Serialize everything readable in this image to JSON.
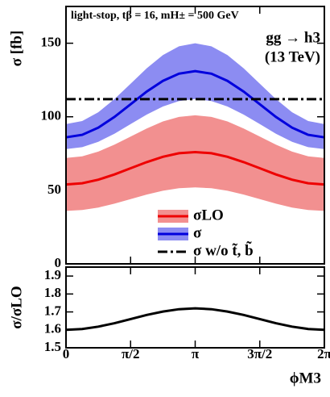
{
  "chart_data": [
    {
      "type": "band-line",
      "ylabel": "σ [fb]",
      "annotations": [
        "light-stop, tβ = 16, mH± = 500 GeV",
        "gg → h3",
        "(13 TeV)"
      ],
      "ylim": [
        0,
        175
      ],
      "yticks": [
        0,
        50,
        100,
        150
      ],
      "xlim": [
        0,
        6.2832
      ],
      "x": [
        0,
        0.3927,
        0.7854,
        1.1781,
        1.5708,
        1.9635,
        2.3562,
        2.7489,
        3.1416,
        3.5343,
        3.927,
        4.3197,
        4.7124,
        5.1051,
        5.4978,
        5.8905,
        6.2832
      ],
      "series": [
        {
          "name": "σLO",
          "color": "#ee0000",
          "band_color": "#f29090",
          "values": [
            54,
            54.8,
            57.2,
            60.8,
            65,
            69.2,
            72.8,
            75.2,
            76,
            75.2,
            72.8,
            69.2,
            65,
            60.8,
            57.2,
            54.8,
            54
          ],
          "upper": [
            72,
            73.1,
            76.3,
            81.0,
            86.5,
            92.0,
            96.8,
            99.9,
            101,
            99.9,
            96.8,
            92.0,
            86.5,
            81.0,
            76.3,
            73.1,
            72
          ],
          "lower": [
            36,
            36.6,
            38.3,
            40.9,
            44,
            47.1,
            49.7,
            51.4,
            52,
            51.4,
            49.7,
            47.1,
            44,
            40.9,
            38.3,
            36.6,
            36
          ]
        },
        {
          "name": "σ",
          "color": "#0000dd",
          "band_color": "#8c8cf2",
          "values": [
            86,
            87.7,
            92.6,
            99.9,
            108.5,
            117.1,
            124.4,
            129.3,
            131,
            129.3,
            124.4,
            117.1,
            108.5,
            99.9,
            92.6,
            87.7,
            86
          ],
          "upper": [
            95,
            97.1,
            103.1,
            112.0,
            122.5,
            133.0,
            141.9,
            147.9,
            150,
            147.9,
            141.9,
            133.0,
            122.5,
            112.0,
            103.1,
            97.1,
            95
          ],
          "lower": [
            78,
            79.3,
            83.0,
            88.5,
            95,
            101.5,
            107.0,
            110.7,
            112,
            110.7,
            107.0,
            101.5,
            95,
            88.5,
            83.0,
            79.3,
            78
          ]
        },
        {
          "name": "σ w/o t̃, b̃",
          "color": "#000000",
          "y": 112,
          "dash": true
        }
      ]
    },
    {
      "type": "line",
      "ylabel": "σ/σLO",
      "xlabel": "ϕM3",
      "ylim": [
        1.5,
        1.95
      ],
      "yticks": [
        1.5,
        1.6,
        1.7,
        1.8,
        1.9
      ],
      "xlim": [
        0,
        6.2832
      ],
      "xticks": [
        {
          "value": 0,
          "label": "0"
        },
        {
          "value": 1.5708,
          "label": "π/2"
        },
        {
          "value": 3.1416,
          "label": "π"
        },
        {
          "value": 4.7124,
          "label": "3π/2"
        },
        {
          "value": 6.2832,
          "label": "2π"
        }
      ],
      "x": [
        0,
        0.3927,
        0.7854,
        1.1781,
        1.5708,
        1.9635,
        2.3562,
        2.7489,
        3.1416,
        3.5343,
        3.927,
        4.3197,
        4.7124,
        5.1051,
        5.4978,
        5.8905,
        6.2832
      ],
      "color": "#000000",
      "values": [
        1.6,
        1.605,
        1.618,
        1.637,
        1.66,
        1.683,
        1.702,
        1.715,
        1.72,
        1.715,
        1.702,
        1.683,
        1.66,
        1.637,
        1.618,
        1.605,
        1.6
      ]
    }
  ]
}
